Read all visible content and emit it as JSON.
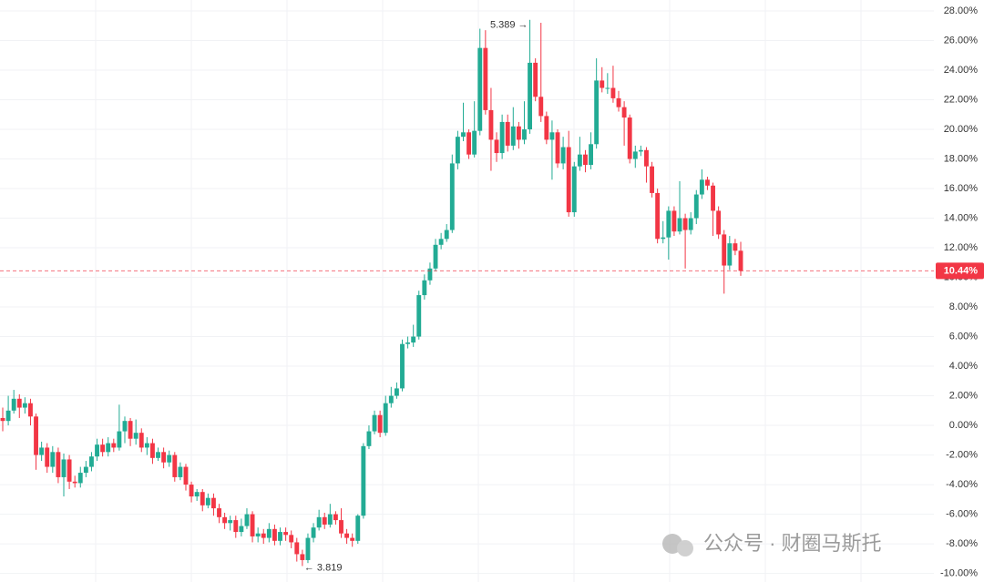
{
  "chart_data": {
    "type": "candlestick",
    "up_color": "#22ab94",
    "down_color": "#f23645",
    "grid": true,
    "ylim": [
      -10.58,
      28.74
    ],
    "yticks": [
      {
        "value": -10,
        "label": "-10.00%"
      },
      {
        "value": -8,
        "label": "-8.00%"
      },
      {
        "value": -6,
        "label": "-6.00%"
      },
      {
        "value": -4,
        "label": "-4.00%"
      },
      {
        "value": -2,
        "label": "-2.00%"
      },
      {
        "value": 0,
        "label": "0.00%"
      },
      {
        "value": 2,
        "label": "2.00%"
      },
      {
        "value": 4,
        "label": "4.00%"
      },
      {
        "value": 6,
        "label": "6.00%"
      },
      {
        "value": 8,
        "label": "8.00%"
      },
      {
        "value": 10,
        "label": "10.00%"
      },
      {
        "value": 12,
        "label": "12.00%"
      },
      {
        "value": 14,
        "label": "14.00%"
      },
      {
        "value": 16,
        "label": "16.00%"
      },
      {
        "value": 18,
        "label": "18.00%"
      },
      {
        "value": 20,
        "label": "20.00%"
      },
      {
        "value": 22,
        "label": "22.00%"
      },
      {
        "value": 24,
        "label": "24.00%"
      },
      {
        "value": 26,
        "label": "26.00%"
      },
      {
        "value": 28,
        "label": "28.00%"
      }
    ],
    "max_label": "5.389 →",
    "min_label": "← 3.819",
    "last_label": "10.44%",
    "watermark": "公众号 · 财圈马斯托",
    "open": [
      0.5,
      0.3,
      1.0,
      1.8,
      1.2,
      1.5,
      0.6,
      -2.0,
      -1.5,
      -2.8,
      -1.8,
      -3.5,
      -2.3,
      -3.8,
      -3.9,
      -3.2,
      -2.8,
      -2.1,
      -1.3,
      -1.8,
      -1.2,
      -1.5,
      -0.4,
      0.3,
      -0.9,
      -0.5,
      -1.5,
      -1.2,
      -2.2,
      -1.8,
      -2.5,
      -2.0,
      -3.5,
      -2.8,
      -4.0,
      -4.8,
      -4.5,
      -5.4,
      -4.9,
      -5.6,
      -6.2,
      -6.6,
      -6.4,
      -7.2,
      -6.8,
      -6.0,
      -7.5,
      -7.3,
      -7.6,
      -7.0,
      -7.8,
      -7.2,
      -7.4,
      -7.9,
      -8.7,
      -9.1,
      -7.6,
      -6.9,
      -6.2,
      -6.7,
      -6.0,
      -6.4,
      -7.3,
      -7.6,
      -7.8,
      -6.1,
      -1.4,
      -0.4,
      0.7,
      -0.5,
      1.5,
      2.0,
      2.5,
      5.5,
      5.6,
      6.0,
      8.8,
      9.8,
      10.6,
      12.2,
      12.6,
      13.2,
      17.7,
      19.5,
      19.8,
      18.3,
      19.9,
      25.5,
      21.3,
      19.3,
      18.4,
      20.5,
      18.9,
      20.2,
      19.3,
      20.0,
      24.5,
      22.2,
      20.9,
      19.3,
      19.8,
      17.7,
      18.8,
      14.4,
      17.5,
      18.3,
      17.6,
      19.0,
      23.3,
      22.8,
      22.8,
      22.1,
      21.5,
      20.8,
      18.0,
      18.5,
      18.6,
      17.5,
      15.7,
      12.6,
      12.7,
      14.5,
      13.1,
      14.0,
      13.2,
      14.0,
      15.6,
      16.6,
      16.2,
      14.5,
      12.9,
      10.8,
      12.3,
      11.8
    ],
    "high": [
      1.2,
      2.0,
      2.4,
      2.1,
      1.9,
      1.8,
      0.8,
      -1.1,
      -1.2,
      -1.4,
      -1.5,
      -1.9,
      -2.0,
      -3.4,
      -2.8,
      -2.4,
      -1.8,
      -0.9,
      -0.9,
      -0.8,
      -0.9,
      1.4,
      0.6,
      0.5,
      0.4,
      -0.2,
      -0.8,
      -0.9,
      -1.5,
      -1.5,
      -1.7,
      -1.8,
      -2.5,
      -2.6,
      -3.8,
      -4.3,
      -4.3,
      -4.6,
      -4.6,
      -5.3,
      -5.9,
      -6.1,
      -6.1,
      -6.3,
      -5.6,
      -5.8,
      -6.9,
      -7.0,
      -6.6,
      -6.7,
      -6.9,
      -6.9,
      -7.1,
      -7.6,
      -8.4,
      -7.3,
      -6.6,
      -5.7,
      -5.9,
      -5.3,
      -5.8,
      -5.6,
      -7.0,
      -7.3,
      -6.0,
      -1.2,
      0.0,
      1.0,
      1.0,
      2.0,
      2.6,
      2.9,
      5.8,
      6.0,
      6.8,
      9.1,
      10.2,
      11.0,
      12.6,
      13.0,
      13.6,
      18.3,
      19.9,
      21.8,
      20.0,
      21.9,
      26.8,
      26.7,
      22.8,
      19.8,
      21.0,
      21.0,
      21.5,
      20.5,
      21.9,
      27.4,
      24.8,
      27.2,
      21.2,
      20.6,
      20.0,
      19.5,
      19.9,
      17.8,
      19.5,
      18.6,
      19.8,
      24.8,
      24.2,
      23.8,
      24.3,
      22.6,
      21.9,
      21.0,
      18.9,
      18.9,
      18.8,
      17.8,
      16.0,
      13.8,
      14.8,
      14.8,
      16.5,
      14.3,
      14.4,
      15.9,
      17.3,
      16.8,
      16.4,
      14.8,
      13.2,
      12.8,
      12.6,
      12.4
    ],
    "low": [
      -0.4,
      0.0,
      0.8,
      0.5,
      0.8,
      0.0,
      -3.0,
      -2.4,
      -3.2,
      -3.2,
      -3.9,
      -4.8,
      -4.3,
      -4.2,
      -4.2,
      -3.5,
      -3.1,
      -2.4,
      -2.1,
      -2.1,
      -1.8,
      -1.7,
      -1.2,
      -1.4,
      -1.3,
      -1.8,
      -2.0,
      -2.6,
      -2.4,
      -2.9,
      -2.8,
      -3.8,
      -3.7,
      -4.4,
      -5.2,
      -5.1,
      -5.8,
      -5.6,
      -6.1,
      -6.6,
      -7.0,
      -7.1,
      -7.6,
      -7.5,
      -7.0,
      -7.9,
      -7.9,
      -8.0,
      -7.9,
      -8.1,
      -8.1,
      -7.8,
      -8.3,
      -9.2,
      -9.5,
      -9.3,
      -7.9,
      -7.1,
      -7.0,
      -6.9,
      -6.7,
      -7.6,
      -8.0,
      -8.2,
      -8.0,
      -6.3,
      -1.6,
      -0.6,
      -0.8,
      -0.7,
      1.2,
      1.8,
      2.3,
      5.2,
      5.3,
      5.8,
      8.5,
      9.5,
      10.4,
      11.9,
      12.4,
      13.0,
      17.3,
      19.2,
      18.0,
      18.1,
      19.6,
      21.0,
      17.2,
      17.8,
      18.0,
      18.5,
      18.6,
      18.7,
      19.0,
      19.7,
      21.9,
      20.5,
      19.0,
      16.6,
      17.4,
      17.3,
      14.1,
      14.1,
      17.2,
      17.1,
      17.3,
      18.7,
      22.5,
      22.4,
      21.8,
      21.2,
      18.9,
      17.7,
      17.4,
      18.2,
      16.4,
      15.4,
      12.3,
      12.3,
      11.2,
      12.8,
      12.9,
      10.6,
      12.9,
      13.6,
      15.3,
      15.9,
      12.8,
      12.6,
      8.9,
      10.5,
      11.5,
      10.1
    ],
    "close": [
      0.3,
      1.0,
      1.8,
      1.2,
      1.5,
      0.6,
      -2.0,
      -1.5,
      -2.8,
      -1.8,
      -3.5,
      -2.3,
      -3.8,
      -3.9,
      -3.2,
      -2.8,
      -2.1,
      -1.3,
      -1.8,
      -1.2,
      -1.5,
      -0.4,
      0.3,
      -0.9,
      -0.5,
      -1.5,
      -1.2,
      -2.2,
      -1.8,
      -2.5,
      -2.0,
      -3.5,
      -2.8,
      -4.0,
      -4.8,
      -4.5,
      -5.4,
      -4.9,
      -5.6,
      -6.2,
      -6.6,
      -6.4,
      -7.2,
      -6.8,
      -6.0,
      -7.5,
      -7.3,
      -7.6,
      -7.0,
      -7.8,
      -7.2,
      -7.4,
      -7.9,
      -8.7,
      -9.1,
      -7.6,
      -6.9,
      -6.2,
      -6.7,
      -6.0,
      -6.4,
      -7.3,
      -7.6,
      -7.8,
      -6.1,
      -1.4,
      -0.4,
      0.7,
      -0.5,
      1.5,
      2.0,
      2.5,
      5.5,
      5.6,
      6.0,
      8.8,
      9.8,
      10.6,
      12.2,
      12.6,
      13.2,
      17.7,
      19.5,
      19.8,
      18.3,
      19.9,
      25.5,
      21.3,
      19.3,
      18.4,
      20.5,
      18.9,
      20.2,
      19.3,
      20.0,
      24.5,
      22.2,
      20.9,
      19.3,
      19.8,
      17.7,
      18.8,
      14.4,
      17.5,
      18.3,
      17.6,
      19.0,
      23.3,
      22.8,
      22.8,
      22.1,
      21.5,
      20.8,
      18.0,
      18.5,
      18.6,
      17.5,
      15.7,
      12.6,
      12.7,
      14.5,
      13.1,
      14.0,
      13.2,
      14.0,
      15.6,
      16.6,
      16.2,
      14.5,
      12.9,
      10.8,
      12.3,
      11.8,
      10.44
    ]
  }
}
